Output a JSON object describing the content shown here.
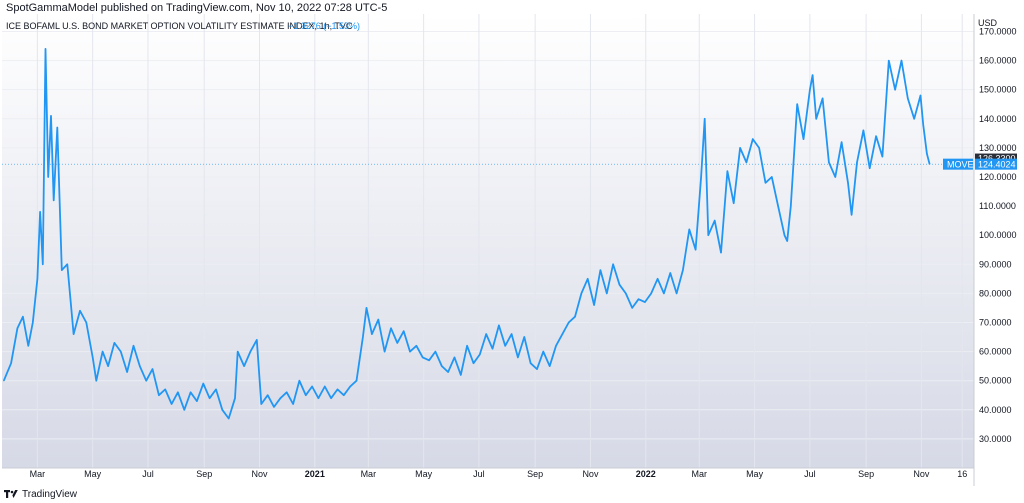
{
  "header": {
    "published": "SpotGammaModel published on TradingView.com, Nov 10, 2022 07:28 UTC-5"
  },
  "footer": {
    "brand": "TradingView",
    "logo_icon": "tradingview-logo-icon"
  },
  "chart_data": {
    "type": "line",
    "title": "ICE BOFAML U.S. BOND MARKET OPTION VOLATILITY ESTIMATE INDEX, 1h, TVC",
    "change_label": "−1.9276 (−1.53%)",
    "currency": "USD",
    "ylim": [
      20,
      176
    ],
    "xlim": [
      "2020-01-22",
      "2022-12-29"
    ],
    "x_ticks": [
      {
        "date": "2020-03-01",
        "label": "Mar"
      },
      {
        "date": "2020-05-01",
        "label": "May"
      },
      {
        "date": "2020-07-01",
        "label": "Jul"
      },
      {
        "date": "2020-09-01",
        "label": "Sep"
      },
      {
        "date": "2020-11-01",
        "label": "Nov"
      },
      {
        "date": "2021-01-01",
        "label": "2021",
        "bold": true
      },
      {
        "date": "2021-03-01",
        "label": "Mar"
      },
      {
        "date": "2021-05-01",
        "label": "May"
      },
      {
        "date": "2021-07-01",
        "label": "Jul"
      },
      {
        "date": "2021-09-01",
        "label": "Sep"
      },
      {
        "date": "2021-11-01",
        "label": "Nov"
      },
      {
        "date": "2022-01-01",
        "label": "2022",
        "bold": true
      },
      {
        "date": "2022-03-01",
        "label": "Mar"
      },
      {
        "date": "2022-05-01",
        "label": "May"
      },
      {
        "date": "2022-07-01",
        "label": "Jul"
      },
      {
        "date": "2022-09-01",
        "label": "Sep"
      },
      {
        "date": "2022-11-01",
        "label": "Nov"
      },
      {
        "date": "2022-12-16",
        "label": "16"
      }
    ],
    "y_ticks": [
      "30.0000",
      "40.0000",
      "50.0000",
      "60.0000",
      "70.0000",
      "80.0000",
      "90.0000",
      "100.0000",
      "110.0000",
      "120.0000",
      "130.0000",
      "140.0000",
      "150.0000",
      "160.0000",
      "170.0000"
    ],
    "series": [
      {
        "name": "MOVE",
        "color": "#2196f3",
        "last_value": "124.4024",
        "prev_value": "126.3300",
        "points": [
          [
            "2020-01-24",
            50
          ],
          [
            "2020-02-01",
            56
          ],
          [
            "2020-02-08",
            68
          ],
          [
            "2020-02-14",
            72
          ],
          [
            "2020-02-20",
            62
          ],
          [
            "2020-02-25",
            70
          ],
          [
            "2020-03-01",
            85
          ],
          [
            "2020-03-04",
            108
          ],
          [
            "2020-03-07",
            90
          ],
          [
            "2020-03-10",
            164
          ],
          [
            "2020-03-13",
            120
          ],
          [
            "2020-03-16",
            141
          ],
          [
            "2020-03-19",
            112
          ],
          [
            "2020-03-23",
            137
          ],
          [
            "2020-03-28",
            88
          ],
          [
            "2020-04-03",
            90
          ],
          [
            "2020-04-10",
            66
          ],
          [
            "2020-04-17",
            74
          ],
          [
            "2020-04-24",
            70
          ],
          [
            "2020-05-01",
            58
          ],
          [
            "2020-05-05",
            50
          ],
          [
            "2020-05-12",
            60
          ],
          [
            "2020-05-18",
            55
          ],
          [
            "2020-05-25",
            63
          ],
          [
            "2020-06-01",
            60
          ],
          [
            "2020-06-08",
            53
          ],
          [
            "2020-06-15",
            62
          ],
          [
            "2020-06-22",
            55
          ],
          [
            "2020-06-29",
            50
          ],
          [
            "2020-07-06",
            54
          ],
          [
            "2020-07-13",
            45
          ],
          [
            "2020-07-20",
            47
          ],
          [
            "2020-07-27",
            42
          ],
          [
            "2020-08-03",
            46
          ],
          [
            "2020-08-10",
            40
          ],
          [
            "2020-08-17",
            46
          ],
          [
            "2020-08-24",
            43
          ],
          [
            "2020-08-31",
            49
          ],
          [
            "2020-09-07",
            44
          ],
          [
            "2020-09-14",
            47
          ],
          [
            "2020-09-21",
            40
          ],
          [
            "2020-09-28",
            37
          ],
          [
            "2020-10-05",
            44
          ],
          [
            "2020-10-08",
            60
          ],
          [
            "2020-10-15",
            55
          ],
          [
            "2020-10-22",
            60
          ],
          [
            "2020-10-29",
            64
          ],
          [
            "2020-11-03",
            42
          ],
          [
            "2020-11-10",
            45
          ],
          [
            "2020-11-17",
            41
          ],
          [
            "2020-11-24",
            44
          ],
          [
            "2020-12-01",
            46
          ],
          [
            "2020-12-08",
            42
          ],
          [
            "2020-12-15",
            50
          ],
          [
            "2020-12-22",
            45
          ],
          [
            "2020-12-29",
            48
          ],
          [
            "2021-01-05",
            44
          ],
          [
            "2021-01-12",
            48
          ],
          [
            "2021-01-19",
            44
          ],
          [
            "2021-01-26",
            47
          ],
          [
            "2021-02-02",
            45
          ],
          [
            "2021-02-09",
            48
          ],
          [
            "2021-02-16",
            50
          ],
          [
            "2021-02-23",
            65
          ],
          [
            "2021-02-27",
            75
          ],
          [
            "2021-03-05",
            66
          ],
          [
            "2021-03-12",
            71
          ],
          [
            "2021-03-19",
            60
          ],
          [
            "2021-03-26",
            68
          ],
          [
            "2021-04-02",
            63
          ],
          [
            "2021-04-09",
            67
          ],
          [
            "2021-04-16",
            60
          ],
          [
            "2021-04-23",
            62
          ],
          [
            "2021-04-30",
            58
          ],
          [
            "2021-05-07",
            57
          ],
          [
            "2021-05-14",
            60
          ],
          [
            "2021-05-21",
            55
          ],
          [
            "2021-05-28",
            53
          ],
          [
            "2021-06-04",
            58
          ],
          [
            "2021-06-11",
            52
          ],
          [
            "2021-06-18",
            62
          ],
          [
            "2021-06-25",
            56
          ],
          [
            "2021-07-02",
            59
          ],
          [
            "2021-07-09",
            66
          ],
          [
            "2021-07-16",
            61
          ],
          [
            "2021-07-23",
            69
          ],
          [
            "2021-07-30",
            62
          ],
          [
            "2021-08-06",
            66
          ],
          [
            "2021-08-13",
            58
          ],
          [
            "2021-08-20",
            65
          ],
          [
            "2021-08-27",
            56
          ],
          [
            "2021-09-03",
            54
          ],
          [
            "2021-09-10",
            60
          ],
          [
            "2021-09-17",
            55
          ],
          [
            "2021-09-24",
            62
          ],
          [
            "2021-10-01",
            66
          ],
          [
            "2021-10-08",
            70
          ],
          [
            "2021-10-15",
            72
          ],
          [
            "2021-10-22",
            80
          ],
          [
            "2021-10-29",
            85
          ],
          [
            "2021-11-05",
            76
          ],
          [
            "2021-11-12",
            88
          ],
          [
            "2021-11-19",
            80
          ],
          [
            "2021-11-26",
            90
          ],
          [
            "2021-12-03",
            83
          ],
          [
            "2021-12-10",
            80
          ],
          [
            "2021-12-17",
            75
          ],
          [
            "2021-12-24",
            78
          ],
          [
            "2021-12-31",
            77
          ],
          [
            "2022-01-07",
            80
          ],
          [
            "2022-01-14",
            85
          ],
          [
            "2022-01-21",
            80
          ],
          [
            "2022-01-28",
            87
          ],
          [
            "2022-02-04",
            80
          ],
          [
            "2022-02-11",
            88
          ],
          [
            "2022-02-18",
            102
          ],
          [
            "2022-02-25",
            95
          ],
          [
            "2022-03-03",
            120
          ],
          [
            "2022-03-07",
            140
          ],
          [
            "2022-03-11",
            100
          ],
          [
            "2022-03-18",
            105
          ],
          [
            "2022-03-25",
            94
          ],
          [
            "2022-04-01",
            122
          ],
          [
            "2022-04-08",
            111
          ],
          [
            "2022-04-15",
            130
          ],
          [
            "2022-04-22",
            125
          ],
          [
            "2022-04-29",
            133
          ],
          [
            "2022-05-06",
            130
          ],
          [
            "2022-05-13",
            118
          ],
          [
            "2022-05-20",
            120
          ],
          [
            "2022-05-27",
            110
          ],
          [
            "2022-06-03",
            100
          ],
          [
            "2022-06-06",
            98
          ],
          [
            "2022-06-10",
            110
          ],
          [
            "2022-06-17",
            145
          ],
          [
            "2022-06-24",
            133
          ],
          [
            "2022-07-01",
            150
          ],
          [
            "2022-07-04",
            155
          ],
          [
            "2022-07-08",
            140
          ],
          [
            "2022-07-15",
            147
          ],
          [
            "2022-07-22",
            125
          ],
          [
            "2022-07-29",
            120
          ],
          [
            "2022-08-05",
            132
          ],
          [
            "2022-08-12",
            118
          ],
          [
            "2022-08-16",
            107
          ],
          [
            "2022-08-22",
            125
          ],
          [
            "2022-08-29",
            136
          ],
          [
            "2022-09-05",
            123
          ],
          [
            "2022-09-12",
            134
          ],
          [
            "2022-09-19",
            127
          ],
          [
            "2022-09-26",
            160
          ],
          [
            "2022-10-03",
            150
          ],
          [
            "2022-10-10",
            160
          ],
          [
            "2022-10-17",
            147
          ],
          [
            "2022-10-24",
            140
          ],
          [
            "2022-10-31",
            148
          ],
          [
            "2022-11-03",
            138
          ],
          [
            "2022-11-07",
            128
          ],
          [
            "2022-11-10",
            124.4
          ]
        ]
      }
    ]
  }
}
